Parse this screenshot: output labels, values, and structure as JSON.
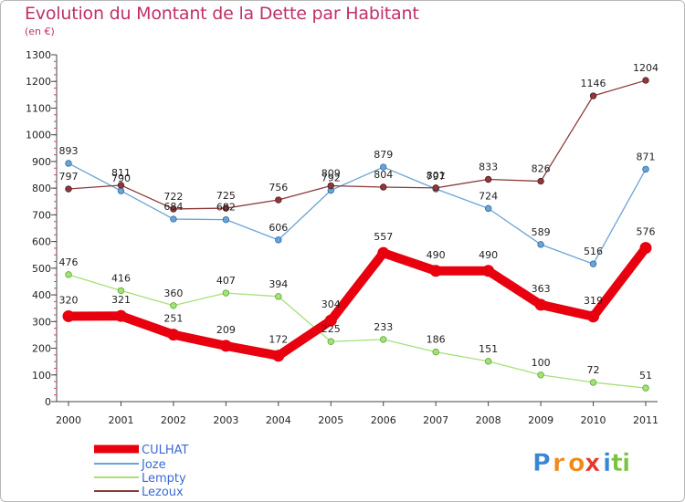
{
  "chart_data": {
    "type": "line",
    "title": "Evolution du Montant de la Dette par Habitant",
    "subtitle": "(en €)",
    "x": [
      "2000",
      "2001",
      "2002",
      "2003",
      "2004",
      "2005",
      "2006",
      "2007",
      "2008",
      "2009",
      "2010",
      "2011"
    ],
    "ylim": [
      0,
      1300
    ],
    "yticks": [
      0,
      100,
      200,
      300,
      400,
      500,
      600,
      700,
      800,
      900,
      1000,
      1100,
      1200,
      1300
    ],
    "grid": false,
    "legend_position": "bottom-left",
    "series": [
      {
        "name": "CULHAT",
        "color": "#e8000e",
        "values": [
          320,
          321,
          251,
          209,
          172,
          304,
          557,
          490,
          490,
          363,
          319,
          576
        ]
      },
      {
        "name": "Joze",
        "color": "#6aa3d5",
        "values": [
          893,
          790,
          684,
          682,
          606,
          792,
          879,
          797,
          724,
          589,
          516,
          871
        ]
      },
      {
        "name": "Lempty",
        "color": "#a6e07a",
        "values": [
          476,
          416,
          360,
          407,
          394,
          225,
          233,
          186,
          151,
          100,
          72,
          51
        ]
      },
      {
        "name": "Lezoux",
        "color": "#8a3a3a",
        "values": [
          797,
          811,
          722,
          725,
          756,
          809,
          804,
          801,
          833,
          826,
          1146,
          1204
        ]
      }
    ]
  },
  "logo": {
    "letters": [
      "P",
      "r",
      "o",
      "x",
      "i",
      "t",
      "i"
    ],
    "colors": [
      "#3a86d4",
      "#f08a1c",
      "#f08a1c",
      "#e8372a",
      "#3a86d4",
      "#7cc242",
      "#7cc242"
    ]
  }
}
